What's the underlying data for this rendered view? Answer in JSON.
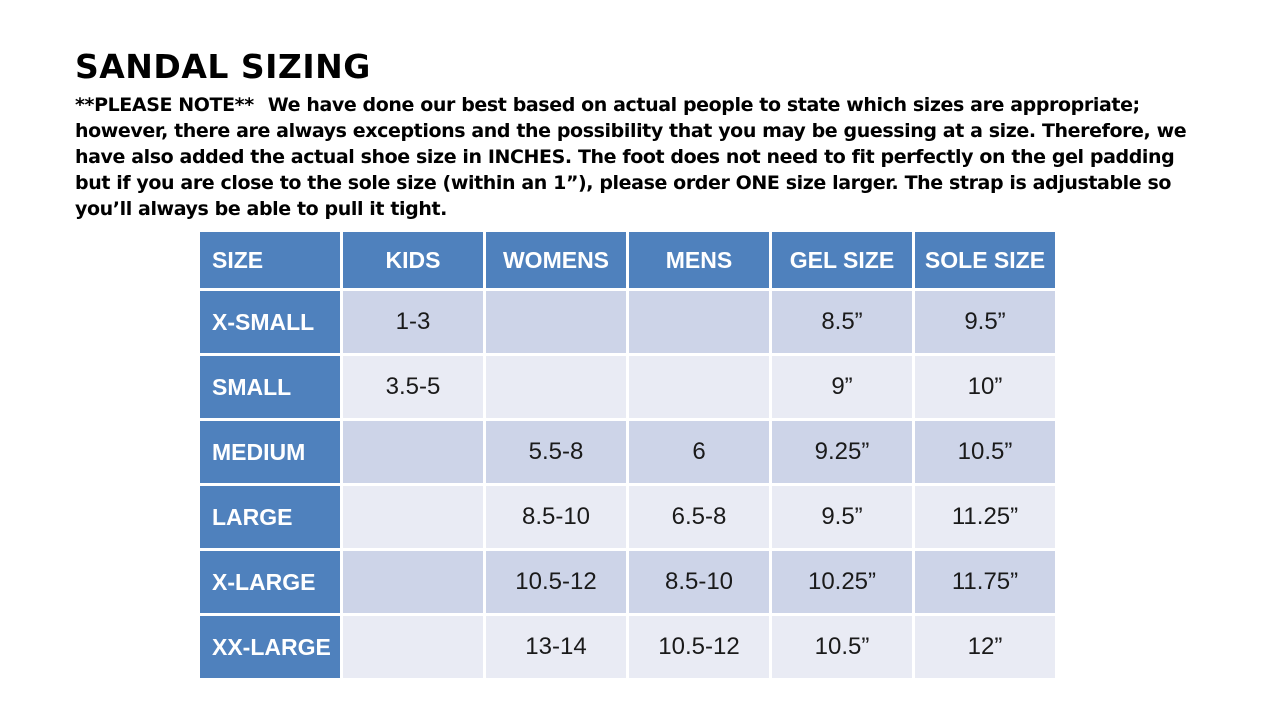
{
  "title": "SANDAL SIZING",
  "note": {
    "prefix": "**PLEASE NOTE**",
    "body": "We have done our best based on actual people to state which sizes are appropriate; however, there are always exceptions and the possibility that you may be guessing at a size.  Therefore, we have also added the actual shoe size in INCHES.  The foot does not need to fit perfectly on the gel padding but if you are close to the sole size (within an 1”), please order ONE size larger.  The strap is adjustable so you’ll always be able to pull it tight."
  },
  "table": {
    "headers": [
      "SIZE",
      "KIDS",
      "WOMENS",
      "MENS",
      "GEL SIZE",
      "SOLE SIZE"
    ],
    "rows": [
      {
        "size": "X-SMALL",
        "kids": "1-3",
        "womens": "",
        "mens": "",
        "gel": "8.5”",
        "sole": "9.5”"
      },
      {
        "size": "SMALL",
        "kids": "3.5-5",
        "womens": "",
        "mens": "",
        "gel": "9”",
        "sole": "10”"
      },
      {
        "size": "MEDIUM",
        "kids": "",
        "womens": "5.5-8",
        "mens": "6",
        "gel": "9.25”",
        "sole": "10.5”"
      },
      {
        "size": "LARGE",
        "kids": "",
        "womens": "8.5-10",
        "mens": "6.5-8",
        "gel": "9.5”",
        "sole": "11.25”"
      },
      {
        "size": "X-LARGE",
        "kids": "",
        "womens": "10.5-12",
        "mens": "8.5-10",
        "gel": "10.25”",
        "sole": "11.75”"
      },
      {
        "size": "XX-LARGE",
        "kids": "",
        "womens": "13-14",
        "mens": "10.5-12",
        "gel": "10.5”",
        "sole": "12”"
      }
    ]
  },
  "colors": {
    "header_bg": "#4f81bd",
    "band_dark": "#cdd4e8",
    "band_light": "#e9ebf4",
    "header_text": "#ffffff",
    "body_text": "#1a1a1a"
  }
}
